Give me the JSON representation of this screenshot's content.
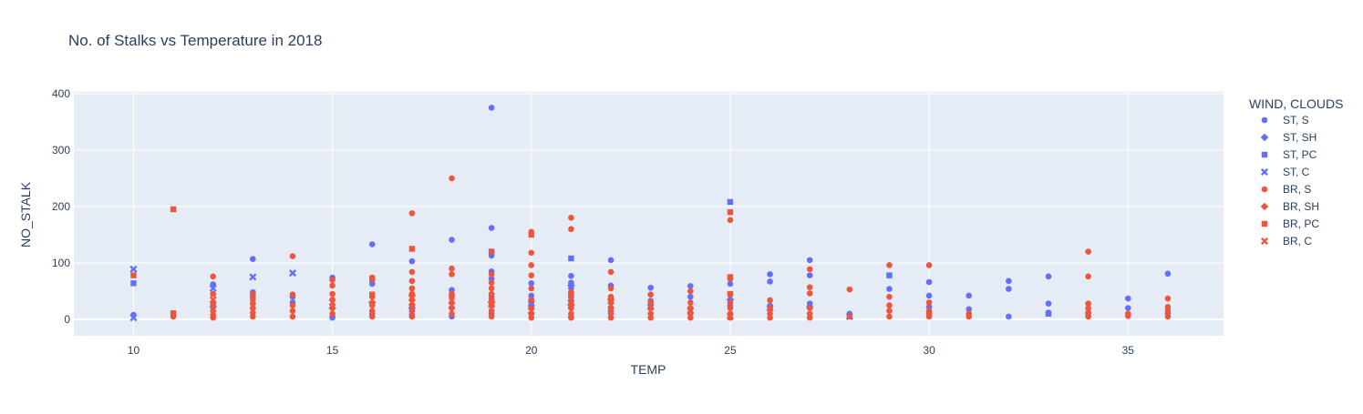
{
  "chart_data": {
    "type": "scatter",
    "title": "No. of Stalks vs Temperature in 2018",
    "xlabel": "TEMP",
    "ylabel": "NO_STALK",
    "xlim": [
      8.5,
      37.4
    ],
    "ylim": [
      -29,
      403
    ],
    "xticks": [
      10,
      15,
      20,
      25,
      30,
      35
    ],
    "yticks": [
      0,
      100,
      200,
      300,
      400
    ],
    "grid": true,
    "legend": {
      "title": "WIND, CLOUDS",
      "placement": "right"
    },
    "colors": {
      "ST": "#636efa",
      "BR": "#ef553b",
      "plot_bg": "#e5ecf6",
      "grid": "#ffffff",
      "text": "#2a3f5f"
    },
    "series": [
      {
        "name": "ST, S",
        "symbol": "circle",
        "color": "#636efa",
        "points": [
          [
            10,
            8
          ],
          [
            12,
            62
          ],
          [
            12,
            30
          ],
          [
            13,
            107
          ],
          [
            13,
            48
          ],
          [
            13,
            40
          ],
          [
            14,
            40
          ],
          [
            14,
            30
          ],
          [
            15,
            74
          ],
          [
            15,
            5
          ],
          [
            15,
            3
          ],
          [
            16,
            133
          ],
          [
            16,
            63
          ],
          [
            16,
            10
          ],
          [
            17,
            103
          ],
          [
            17,
            8
          ],
          [
            18,
            141
          ],
          [
            18,
            52
          ],
          [
            18,
            5
          ],
          [
            19,
            375
          ],
          [
            19,
            162
          ],
          [
            19,
            113
          ],
          [
            19,
            85
          ],
          [
            19,
            72
          ],
          [
            19,
            40
          ],
          [
            19,
            10
          ],
          [
            20,
            64
          ],
          [
            20,
            42
          ],
          [
            20,
            35
          ],
          [
            20,
            30
          ],
          [
            20,
            22
          ],
          [
            20,
            10
          ],
          [
            21,
            77
          ],
          [
            21,
            65
          ],
          [
            21,
            55
          ],
          [
            21,
            40
          ],
          [
            21,
            20
          ],
          [
            21,
            5
          ],
          [
            22,
            105
          ],
          [
            22,
            60
          ],
          [
            22,
            15
          ],
          [
            23,
            56
          ],
          [
            23,
            33
          ],
          [
            24,
            59
          ],
          [
            24,
            40
          ],
          [
            24,
            12
          ],
          [
            25,
            63
          ],
          [
            25,
            25
          ],
          [
            25,
            10
          ],
          [
            26,
            80
          ],
          [
            26,
            67
          ],
          [
            26,
            24
          ],
          [
            27,
            105
          ],
          [
            27,
            78
          ],
          [
            27,
            28
          ],
          [
            28,
            10
          ],
          [
            29,
            54
          ],
          [
            30,
            66
          ],
          [
            30,
            42
          ],
          [
            30,
            22
          ],
          [
            31,
            42
          ],
          [
            31,
            18
          ],
          [
            32,
            68
          ],
          [
            32,
            54
          ],
          [
            32,
            5
          ],
          [
            33,
            76
          ],
          [
            33,
            28
          ],
          [
            33,
            12
          ],
          [
            35,
            37
          ],
          [
            35,
            20
          ],
          [
            36,
            81
          ],
          [
            36,
            10
          ]
        ]
      },
      {
        "name": "ST, SH",
        "symbol": "diamond",
        "color": "#636efa",
        "points": [
          [
            12,
            22
          ],
          [
            15,
            20
          ],
          [
            17,
            20
          ],
          [
            21,
            60
          ],
          [
            25,
            35
          ],
          [
            27,
            22
          ]
        ]
      },
      {
        "name": "ST, PC",
        "symbol": "square",
        "color": "#636efa",
        "points": [
          [
            10,
            64
          ],
          [
            19,
            120
          ],
          [
            21,
            108
          ],
          [
            25,
            208
          ],
          [
            29,
            78
          ],
          [
            33,
            10
          ],
          [
            34,
            10
          ]
        ]
      },
      {
        "name": "ST, C",
        "symbol": "x",
        "color": "#636efa",
        "points": [
          [
            10,
            89
          ],
          [
            10,
            3
          ],
          [
            12,
            55
          ],
          [
            13,
            75
          ],
          [
            14,
            82
          ],
          [
            18,
            25
          ],
          [
            19,
            26
          ],
          [
            20,
            28
          ],
          [
            21,
            30
          ],
          [
            23,
            22
          ],
          [
            26,
            20
          ],
          [
            28,
            5
          ]
        ]
      },
      {
        "name": "BR, S",
        "symbol": "circle",
        "color": "#ef553b",
        "points": [
          [
            11,
            5
          ],
          [
            12,
            76
          ],
          [
            12,
            45
          ],
          [
            12,
            25
          ],
          [
            12,
            15
          ],
          [
            12,
            8
          ],
          [
            12,
            3
          ],
          [
            13,
            45
          ],
          [
            13,
            35
          ],
          [
            13,
            28
          ],
          [
            13,
            20
          ],
          [
            13,
            12
          ],
          [
            13,
            5
          ],
          [
            14,
            112
          ],
          [
            14,
            44
          ],
          [
            14,
            25
          ],
          [
            14,
            15
          ],
          [
            14,
            5
          ],
          [
            15,
            70
          ],
          [
            15,
            60
          ],
          [
            15,
            45
          ],
          [
            15,
            35
          ],
          [
            15,
            20
          ],
          [
            15,
            10
          ],
          [
            16,
            74
          ],
          [
            16,
            40
          ],
          [
            16,
            25
          ],
          [
            16,
            15
          ],
          [
            16,
            5
          ],
          [
            17,
            188
          ],
          [
            17,
            84
          ],
          [
            17,
            68
          ],
          [
            17,
            55
          ],
          [
            17,
            45
          ],
          [
            17,
            35
          ],
          [
            17,
            25
          ],
          [
            17,
            15
          ],
          [
            17,
            5
          ],
          [
            18,
            250
          ],
          [
            18,
            90
          ],
          [
            18,
            80
          ],
          [
            18,
            45
          ],
          [
            18,
            30
          ],
          [
            18,
            20
          ],
          [
            18,
            10
          ],
          [
            19,
            120
          ],
          [
            19,
            80
          ],
          [
            19,
            65
          ],
          [
            19,
            55
          ],
          [
            19,
            45
          ],
          [
            19,
            35
          ],
          [
            19,
            25
          ],
          [
            19,
            15
          ],
          [
            19,
            5
          ],
          [
            20,
            155
          ],
          [
            20,
            118
          ],
          [
            20,
            96
          ],
          [
            20,
            78
          ],
          [
            20,
            55
          ],
          [
            20,
            35
          ],
          [
            20,
            20
          ],
          [
            20,
            10
          ],
          [
            20,
            3
          ],
          [
            21,
            180
          ],
          [
            21,
            160
          ],
          [
            21,
            48
          ],
          [
            21,
            40
          ],
          [
            21,
            30
          ],
          [
            21,
            20
          ],
          [
            21,
            10
          ],
          [
            21,
            3
          ],
          [
            22,
            84
          ],
          [
            22,
            55
          ],
          [
            22,
            40
          ],
          [
            22,
            30
          ],
          [
            22,
            20
          ],
          [
            22,
            10
          ],
          [
            22,
            3
          ],
          [
            23,
            44
          ],
          [
            23,
            30
          ],
          [
            23,
            20
          ],
          [
            23,
            10
          ],
          [
            23,
            3
          ],
          [
            24,
            50
          ],
          [
            24,
            30
          ],
          [
            24,
            20
          ],
          [
            24,
            10
          ],
          [
            24,
            3
          ],
          [
            25,
            176
          ],
          [
            25,
            72
          ],
          [
            25,
            45
          ],
          [
            25,
            30
          ],
          [
            25,
            20
          ],
          [
            25,
            10
          ],
          [
            25,
            3
          ],
          [
            26,
            34
          ],
          [
            26,
            20
          ],
          [
            26,
            10
          ],
          [
            26,
            3
          ],
          [
            27,
            89
          ],
          [
            27,
            57
          ],
          [
            27,
            46
          ],
          [
            27,
            20
          ],
          [
            27,
            10
          ],
          [
            27,
            3
          ],
          [
            28,
            53
          ],
          [
            28,
            5
          ],
          [
            29,
            96
          ],
          [
            29,
            40
          ],
          [
            29,
            25
          ],
          [
            29,
            15
          ],
          [
            29,
            5
          ],
          [
            30,
            96
          ],
          [
            30,
            30
          ],
          [
            30,
            15
          ],
          [
            30,
            5
          ],
          [
            31,
            10
          ],
          [
            31,
            5
          ],
          [
            34,
            120
          ],
          [
            34,
            76
          ],
          [
            34,
            28
          ],
          [
            34,
            20
          ],
          [
            34,
            12
          ],
          [
            34,
            5
          ],
          [
            35,
            10
          ],
          [
            35,
            6
          ],
          [
            36,
            37
          ],
          [
            36,
            22
          ],
          [
            36,
            15
          ],
          [
            36,
            5
          ]
        ]
      },
      {
        "name": "BR, SH",
        "symbol": "diamond",
        "color": "#ef553b",
        "points": [
          [
            16,
            30
          ],
          [
            17,
            42
          ],
          [
            19,
            30
          ],
          [
            21,
            25
          ],
          [
            22,
            35
          ]
        ]
      },
      {
        "name": "BR, PC",
        "symbol": "square",
        "color": "#ef553b",
        "points": [
          [
            10,
            78
          ],
          [
            11,
            195
          ],
          [
            11,
            11
          ],
          [
            16,
            72
          ],
          [
            16,
            44
          ],
          [
            17,
            125
          ],
          [
            18,
            40
          ],
          [
            20,
            150
          ],
          [
            21,
            45
          ],
          [
            25,
            190
          ],
          [
            25,
            75
          ],
          [
            25,
            45
          ],
          [
            30,
            10
          ]
        ]
      },
      {
        "name": "BR, C",
        "symbol": "x",
        "color": "#ef553b",
        "points": [
          [
            12,
            35
          ],
          [
            15,
            30
          ],
          [
            17,
            30
          ],
          [
            19,
            28
          ],
          [
            20,
            15
          ],
          [
            22,
            25
          ],
          [
            24,
            15
          ],
          [
            25,
            5
          ]
        ]
      }
    ]
  }
}
